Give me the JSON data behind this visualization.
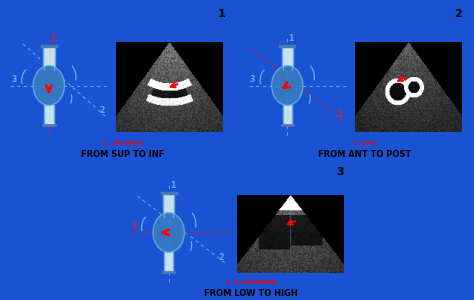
{
  "bg_color": "#1a52d4",
  "panel_bg": "#dde8f5",
  "panel_numbers": [
    "1",
    "2",
    "3"
  ],
  "panel_labels_red": [
    "1   BICAVAL",
    "2  SAX",
    "3  4 CHAMBER"
  ],
  "panel_labels_black": [
    "FROM SUP TO INF",
    "FROM ANT TO POST",
    "FROM LOW TO HIGH"
  ],
  "heart_color": "#3a7ec0",
  "heart_alpha": 0.85,
  "line_color": "#6aade0",
  "tube_color": "#7ab8e0",
  "dashed_red": "#dd2222",
  "dashed_blue": "#6aade0"
}
